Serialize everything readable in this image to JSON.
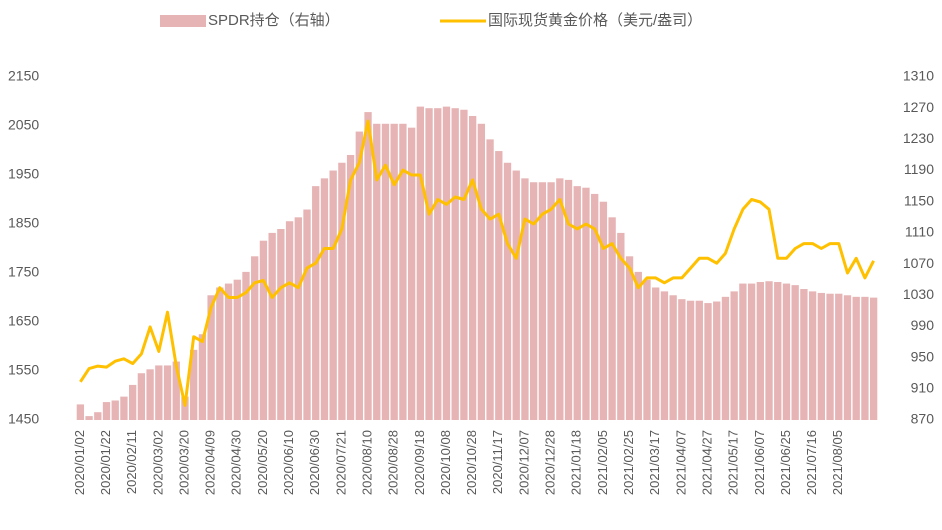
{
  "chart_data": {
    "type": "bar_line",
    "categories": [
      "2020/01/02",
      null,
      null,
      "2020/01/22",
      null,
      null,
      "2020/02/11",
      null,
      null,
      "2020/03/02",
      null,
      null,
      "2020/03/20",
      null,
      null,
      "2020/04/09",
      null,
      null,
      "2020/04/30",
      null,
      null,
      "2020/05/20",
      null,
      null,
      "2020/06/10",
      null,
      null,
      "2020/06/30",
      null,
      null,
      "2020/07/21",
      null,
      null,
      "2020/08/10",
      null,
      null,
      "2020/08/28",
      null,
      null,
      "2020/09/18",
      null,
      null,
      "2020/10/08",
      null,
      null,
      "2020/10/28",
      null,
      null,
      "2020/11/17",
      null,
      null,
      "2020/12/07",
      null,
      null,
      "2020/12/28",
      null,
      null,
      "2021/01/18",
      null,
      null,
      "2021/02/05",
      null,
      null,
      "2021/02/25",
      null,
      null,
      "2021/03/17",
      null,
      null,
      "2021/04/07",
      null,
      null,
      "2021/04/27",
      null,
      null,
      "2021/05/17",
      null,
      null,
      "2021/06/07",
      null,
      null,
      "2021/06/25",
      null,
      null,
      "2021/07/16",
      null,
      null,
      "2021/08/05",
      null,
      null,
      null,
      null
    ],
    "series": [
      {
        "name": "SPDR持仓（右轴）",
        "type": "bar",
        "axis": "y2",
        "color": "#e6b4b4",
        "values": [
          890,
          875,
          880,
          893,
          895,
          900,
          915,
          930,
          935,
          940,
          940,
          945,
          900,
          960,
          980,
          1030,
          1040,
          1045,
          1050,
          1060,
          1080,
          1100,
          1110,
          1115,
          1125,
          1130,
          1140,
          1170,
          1180,
          1190,
          1200,
          1210,
          1240,
          1265,
          1250,
          1250,
          1250,
          1250,
          1245,
          1272,
          1270,
          1270,
          1272,
          1270,
          1268,
          1260,
          1250,
          1230,
          1215,
          1200,
          1190,
          1180,
          1175,
          1175,
          1175,
          1180,
          1178,
          1170,
          1168,
          1160,
          1150,
          1130,
          1110,
          1080,
          1060,
          1050,
          1040,
          1035,
          1030,
          1025,
          1023,
          1023,
          1020,
          1022,
          1028,
          1035,
          1045,
          1045,
          1047,
          1048,
          1047,
          1045,
          1043,
          1038,
          1035,
          1033,
          1032,
          1032,
          1030,
          1028,
          1028,
          1027
        ]
      },
      {
        "name": "国际现货黄金价格（美元/盎司）",
        "type": "line",
        "axis": "y",
        "color": "#ffc000",
        "values": [
          1528,
          1555,
          1560,
          1558,
          1570,
          1575,
          1565,
          1585,
          1640,
          1590,
          1670,
          1560,
          1480,
          1620,
          1610,
          1680,
          1720,
          1700,
          1700,
          1710,
          1730,
          1735,
          1700,
          1720,
          1730,
          1720,
          1760,
          1770,
          1800,
          1800,
          1840,
          1940,
          1975,
          2060,
          1940,
          1970,
          1930,
          1960,
          1950,
          1950,
          1870,
          1900,
          1890,
          1905,
          1900,
          1940,
          1880,
          1860,
          1870,
          1810,
          1780,
          1860,
          1850,
          1870,
          1880,
          1900,
          1850,
          1840,
          1850,
          1840,
          1800,
          1810,
          1780,
          1760,
          1720,
          1740,
          1740,
          1730,
          1740,
          1740,
          1760,
          1780,
          1780,
          1770,
          1790,
          1840,
          1880,
          1900,
          1895,
          1880,
          1780,
          1780,
          1800,
          1810,
          1810,
          1800,
          1810,
          1810,
          1750,
          1780,
          1740,
          1775
        ]
      }
    ],
    "ylim": [
      1450,
      2150
    ],
    "yticks": [
      1450,
      1550,
      1650,
      1750,
      1850,
      1950,
      2050,
      2150
    ],
    "y2lim": [
      870,
      1310
    ],
    "y2ticks": [
      870,
      910,
      950,
      990,
      1030,
      1070,
      1110,
      1150,
      1190,
      1230,
      1270,
      1310
    ],
    "grid": false,
    "legend": "top"
  }
}
